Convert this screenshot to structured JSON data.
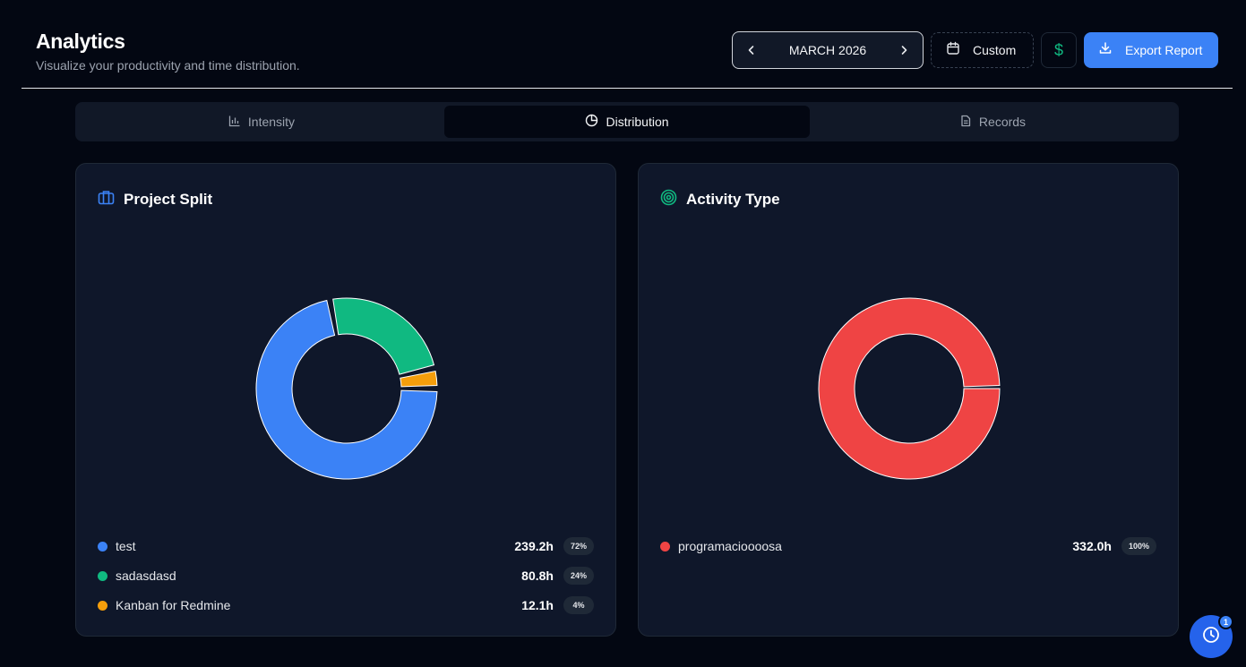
{
  "header": {
    "title": "Analytics",
    "subtitle": "Visualize your productivity and time distribution.",
    "month_label": "MARCH 2026",
    "custom_label": "Custom",
    "currency_icon": "dollar-icon",
    "export_label": "Export Report"
  },
  "tabs": [
    {
      "label": "Intensity",
      "icon": "bar-chart-icon",
      "active": false
    },
    {
      "label": "Distribution",
      "icon": "pie-chart-icon",
      "active": true
    },
    {
      "label": "Records",
      "icon": "document-icon",
      "active": false
    }
  ],
  "colors": {
    "accent": "#3b82f6",
    "project_test": "#3b82f6",
    "project_sadasdasd": "#10b981",
    "project_kanban": "#f59e0b",
    "activity_programacion": "#ef4444",
    "currency": "#10b981"
  },
  "project_card": {
    "title": "Project Split",
    "icon": "briefcase-icon",
    "items": [
      {
        "name": "test",
        "hours": "239.2h",
        "percent": "72%",
        "color": "#3b82f6"
      },
      {
        "name": "sadasdasd",
        "hours": "80.8h",
        "percent": "24%",
        "color": "#10b981"
      },
      {
        "name": "Kanban for Redmine",
        "hours": "12.1h",
        "percent": "4%",
        "color": "#f59e0b"
      }
    ]
  },
  "activity_card": {
    "title": "Activity Type",
    "icon": "target-icon",
    "items": [
      {
        "name": "programacioooosa",
        "hours": "332.0h",
        "percent": "100%",
        "color": "#ef4444"
      }
    ]
  },
  "fab": {
    "icon": "clock-icon",
    "badge": "1"
  },
  "chart_data": [
    {
      "type": "pie",
      "title": "Project Split",
      "categories": [
        "test",
        "sadasdasd",
        "Kanban for Redmine"
      ],
      "values": [
        239.2,
        80.8,
        12.1
      ],
      "percents": [
        72,
        24,
        4
      ],
      "donut": true
    },
    {
      "type": "pie",
      "title": "Activity Type",
      "categories": [
        "programacioooosa"
      ],
      "values": [
        332.0
      ],
      "percents": [
        100
      ],
      "donut": true
    }
  ]
}
